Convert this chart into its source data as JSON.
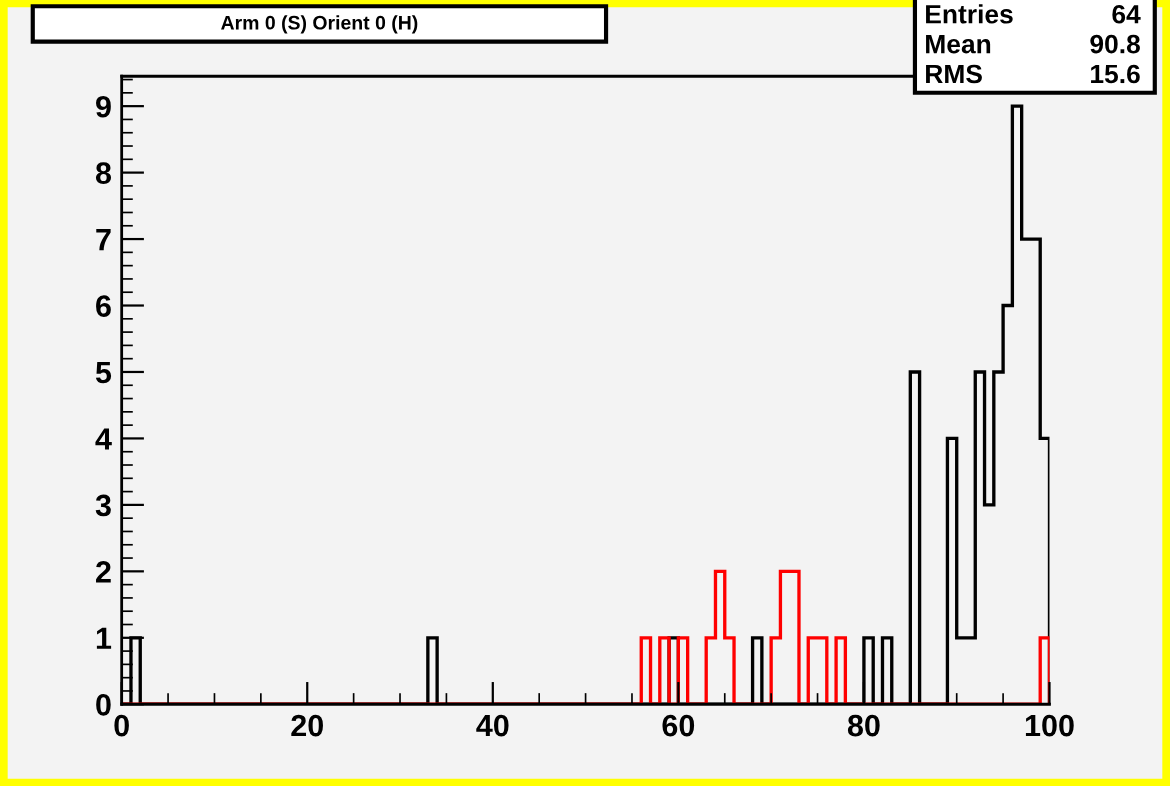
{
  "chart_data": {
    "type": "histogram",
    "title": "Arm 0 (S) Orient 0 (H)",
    "bins": [
      0,
      1,
      2,
      3,
      4,
      5,
      6,
      7,
      8,
      9,
      10,
      11,
      12,
      13,
      14,
      15,
      16,
      17,
      18,
      19,
      20,
      21,
      22,
      23,
      24,
      25,
      26,
      27,
      28,
      29,
      30,
      31,
      32,
      33,
      34,
      35,
      36,
      37,
      38,
      39,
      40,
      41,
      42,
      43,
      44,
      45,
      46,
      47,
      48,
      49,
      50,
      51,
      52,
      53,
      54,
      55,
      56,
      57,
      58,
      59,
      60,
      61,
      62,
      63,
      64,
      65,
      66,
      67,
      68,
      69,
      70,
      71,
      72,
      73,
      74,
      75,
      76,
      77,
      78,
      79,
      80,
      81,
      82,
      83,
      84,
      85,
      86,
      87,
      88,
      89,
      90,
      91,
      92,
      93,
      94,
      95,
      96,
      97,
      98,
      99,
      100
    ],
    "series": [
      {
        "color": "#000000",
        "values": [
          0,
          1,
          0,
          0,
          0,
          0,
          0,
          0,
          0,
          0,
          0,
          0,
          0,
          0,
          0,
          0,
          0,
          0,
          0,
          0,
          0,
          0,
          0,
          0,
          0,
          0,
          0,
          0,
          0,
          0,
          0,
          0,
          0,
          1,
          0,
          0,
          0,
          0,
          0,
          0,
          0,
          0,
          0,
          0,
          0,
          0,
          0,
          0,
          0,
          0,
          0,
          0,
          0,
          0,
          0,
          0,
          0,
          0,
          0,
          1,
          0,
          0,
          0,
          0,
          0,
          0,
          0,
          0,
          1,
          0,
          0,
          0,
          0,
          0,
          0,
          0,
          0,
          0,
          0,
          0,
          1,
          0,
          1,
          0,
          0,
          5,
          0,
          0,
          0,
          4,
          1,
          1,
          5,
          3,
          5,
          6,
          9,
          7,
          7,
          4
        ]
      },
      {
        "color": "#ff0000",
        "values": [
          0,
          0,
          0,
          0,
          0,
          0,
          0,
          0,
          0,
          0,
          0,
          0,
          0,
          0,
          0,
          0,
          0,
          0,
          0,
          0,
          0,
          0,
          0,
          0,
          0,
          0,
          0,
          0,
          0,
          0,
          0,
          0,
          0,
          0,
          0,
          0,
          0,
          0,
          0,
          0,
          0,
          0,
          0,
          0,
          0,
          0,
          0,
          0,
          0,
          0,
          0,
          0,
          0,
          0,
          0,
          0,
          1,
          0,
          1,
          0,
          1,
          0,
          0,
          1,
          2,
          1,
          0,
          0,
          0,
          0,
          1,
          2,
          2,
          0,
          1,
          1,
          0,
          1,
          0,
          0,
          0,
          0,
          0,
          0,
          0,
          0,
          0,
          0,
          0,
          0,
          0,
          0,
          0,
          0,
          0,
          0,
          0,
          0,
          0,
          1
        ]
      }
    ],
    "xlim": [
      0,
      100
    ],
    "xticks": [
      0,
      20,
      40,
      60,
      80,
      100
    ],
    "ylim": [
      0,
      9.45
    ],
    "yticks": [
      0,
      1,
      2,
      3,
      4,
      5,
      6,
      7,
      8,
      9
    ],
    "annotations": [
      "Entries 64",
      "Mean 90.8",
      "RMS 15.6"
    ],
    "grid": false,
    "legend": false
  }
}
